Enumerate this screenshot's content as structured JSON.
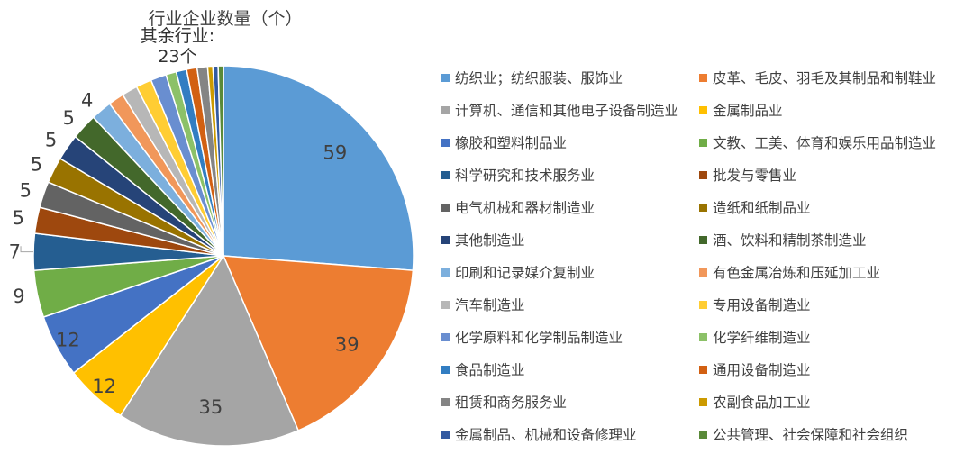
{
  "chart_data": {
    "type": "pie",
    "title": "行业企业数量（个）",
    "others_label": "其余行业:",
    "others_value_label": "23个",
    "slices": [
      {
        "name": "纺织业；纺织服装、服饰业",
        "value": 59,
        "color": "#5B9BD5"
      },
      {
        "name": "皮革、毛皮、羽毛及其制品和制鞋业",
        "value": 39,
        "color": "#ED7D31"
      },
      {
        "name": "计算机、通信和其他电子设备制造业",
        "value": 35,
        "color": "#A5A5A5"
      },
      {
        "name": "金属制品业",
        "value": 12,
        "color": "#FFC000"
      },
      {
        "name": "橡胶和塑料制品业",
        "value": 12,
        "color": "#4472C4"
      },
      {
        "name": "文教、工美、体育和娱乐用品制造业",
        "value": 9,
        "color": "#70AD47"
      },
      {
        "name": "科学研究和技术服务业",
        "value": 7,
        "color": "#255E91"
      },
      {
        "name": "批发与零售业",
        "value": 5,
        "color": "#9E480E"
      },
      {
        "name": "电气机械和器材制造业",
        "value": 5,
        "color": "#636363"
      },
      {
        "name": "造纸和纸制品业",
        "value": 5,
        "color": "#997300"
      },
      {
        "name": "其他制造业",
        "value": 5,
        "color": "#264478"
      },
      {
        "name": "酒、饮料和精制茶制造业",
        "value": 5,
        "color": "#43682B"
      },
      {
        "name": "印刷和记录媒介复制业",
        "value": 4,
        "color": "#7CAFDD"
      },
      {
        "name": "有色金属冶炼和压延加工业",
        "value": 3,
        "color": "#F1975A"
      },
      {
        "name": "汽车制造业",
        "value": 3,
        "color": "#B7B7B7"
      },
      {
        "name": "专用设备制造业",
        "value": 3,
        "color": "#FFCD33"
      },
      {
        "name": "化学原料和化学制品制造业",
        "value": 3,
        "color": "#698ED0"
      },
      {
        "name": "化学纤维制造业",
        "value": 2,
        "color": "#8CC168"
      },
      {
        "name": "食品制造业",
        "value": 2,
        "color": "#327DC2"
      },
      {
        "name": "通用设备制造业",
        "value": 2,
        "color": "#D26012"
      },
      {
        "name": "租赁和商务服务业",
        "value": 2,
        "color": "#848484"
      },
      {
        "name": "农副食品加工业",
        "value": 1,
        "color": "#CC9A00"
      },
      {
        "name": "金属制品、机械和设备修理业",
        "value": 1,
        "color": "#335AA1"
      },
      {
        "name": "公共管理、社会保障和社会组织",
        "value": 1,
        "color": "#5A8A39"
      }
    ],
    "data_labels": [
      "59",
      "39",
      "35",
      "12",
      "12",
      "9",
      "7",
      "5",
      "5",
      "5",
      "5",
      "5",
      "4"
    ]
  }
}
